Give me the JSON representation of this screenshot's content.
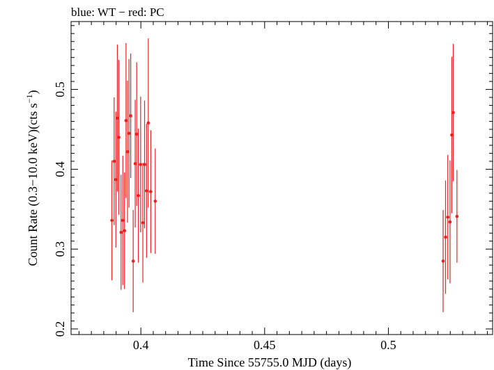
{
  "chart_data": {
    "type": "scatter",
    "title": "blue: WT − red: PC",
    "xlabel": "Time Since 55755.0 MJD (days)",
    "ylabel_main": "Count Rate (0.3−10.0 keV)(cts s",
    "ylabel_sup": "−1",
    "ylabel_close": ")",
    "xlim": [
      0.3718,
      0.5421
    ],
    "ylim": [
      0.193,
      0.585
    ],
    "xticks": [
      {
        "value": 0.4,
        "label": "0.4"
      },
      {
        "value": 0.45,
        "label": "0.45"
      },
      {
        "value": 0.5,
        "label": "0.5"
      }
    ],
    "yticks": [
      {
        "value": 0.2,
        "label": "0.2"
      },
      {
        "value": 0.3,
        "label": "0.3"
      },
      {
        "value": 0.4,
        "label": "0.4"
      },
      {
        "value": 0.5,
        "label": "0.5"
      }
    ],
    "grid": false,
    "series": [
      {
        "color": "#e8231f",
        "points": [
          {
            "x": 0.3883,
            "y": 0.336,
            "yerr": 0.075
          },
          {
            "x": 0.3892,
            "y": 0.41,
            "yerr": 0.08
          },
          {
            "x": 0.3899,
            "y": 0.387,
            "yerr": 0.085
          },
          {
            "x": 0.3905,
            "y": 0.464,
            "yerr": 0.092
          },
          {
            "x": 0.3911,
            "y": 0.44,
            "yerr": 0.097
          },
          {
            "x": 0.392,
            "y": 0.321,
            "yerr": 0.072
          },
          {
            "x": 0.3927,
            "y": 0.336,
            "yerr": 0.081
          },
          {
            "x": 0.3934,
            "y": 0.323,
            "yerr": 0.073
          },
          {
            "x": 0.394,
            "y": 0.461,
            "yerr": 0.097
          },
          {
            "x": 0.3946,
            "y": 0.422,
            "yerr": 0.089
          },
          {
            "x": 0.3952,
            "y": 0.445,
            "yerr": 0.093
          },
          {
            "x": 0.3959,
            "y": 0.467,
            "yerr": 0.078
          },
          {
            "x": 0.3969,
            "y": 0.285,
            "yerr": 0.064
          },
          {
            "x": 0.3977,
            "y": 0.407,
            "yerr": 0.08
          },
          {
            "x": 0.3983,
            "y": 0.444,
            "yerr": 0.09
          },
          {
            "x": 0.399,
            "y": 0.367,
            "yerr": 0.084
          },
          {
            "x": 0.3999,
            "y": 0.406,
            "yerr": 0.085
          },
          {
            "x": 0.4008,
            "y": 0.333,
            "yerr": 0.075
          },
          {
            "x": 0.4015,
            "y": 0.406,
            "yerr": 0.08
          },
          {
            "x": 0.4023,
            "y": 0.373,
            "yerr": 0.084
          },
          {
            "x": 0.403,
            "y": 0.458,
            "yerr": 0.106
          },
          {
            "x": 0.404,
            "y": 0.372,
            "yerr": 0.077
          },
          {
            "x": 0.4058,
            "y": 0.36,
            "yerr": 0.066
          },
          {
            "x": 0.5221,
            "y": 0.285,
            "yerr": 0.064
          },
          {
            "x": 0.5231,
            "y": 0.315,
            "yerr": 0.071
          },
          {
            "x": 0.524,
            "y": 0.34,
            "yerr": 0.078
          },
          {
            "x": 0.5249,
            "y": 0.334,
            "yerr": 0.077
          },
          {
            "x": 0.5256,
            "y": 0.443,
            "yerr": 0.098
          },
          {
            "x": 0.5262,
            "y": 0.471,
            "yerr": 0.086
          },
          {
            "x": 0.5277,
            "y": 0.341,
            "yerr": 0.058
          }
        ]
      }
    ]
  }
}
